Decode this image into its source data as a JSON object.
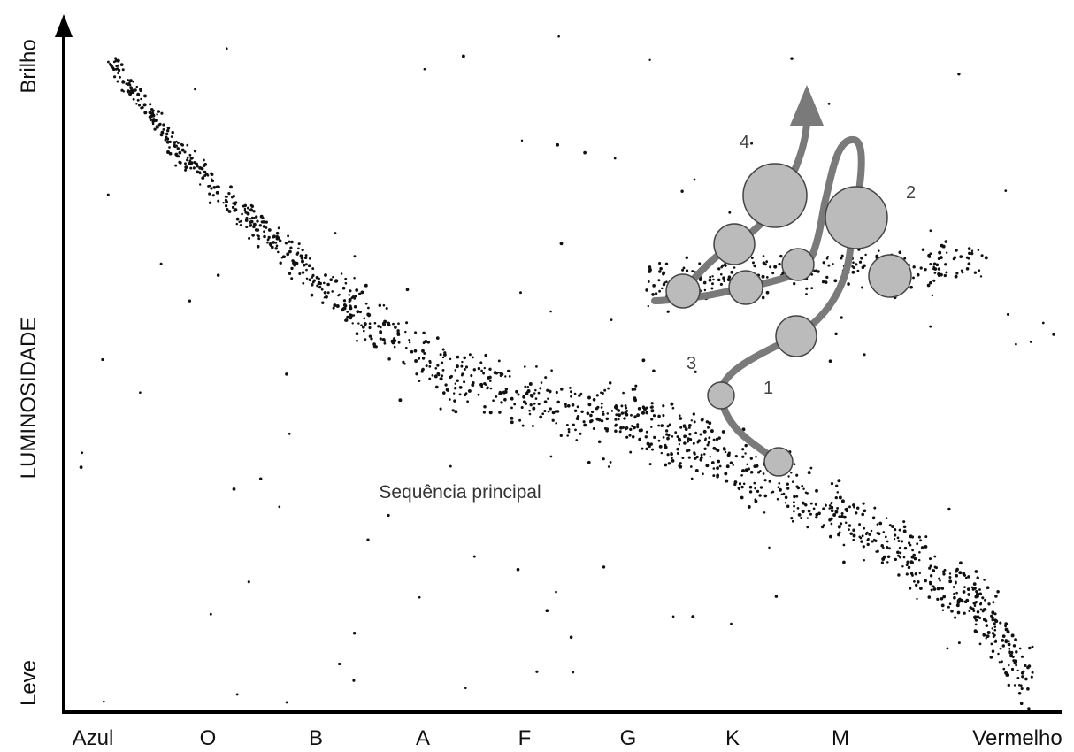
{
  "axes": {
    "y_title": "LUMINOSIDADE",
    "y_top": "Brilho",
    "y_bottom": "Leve",
    "x_categories": [
      "Azul",
      "O",
      "B",
      "A",
      "F",
      "G",
      "K",
      "M",
      "Vermelho"
    ]
  },
  "annotations": {
    "main_sequence": "Sequência principal",
    "stages": [
      "1",
      "2",
      "3",
      "4"
    ]
  }
}
